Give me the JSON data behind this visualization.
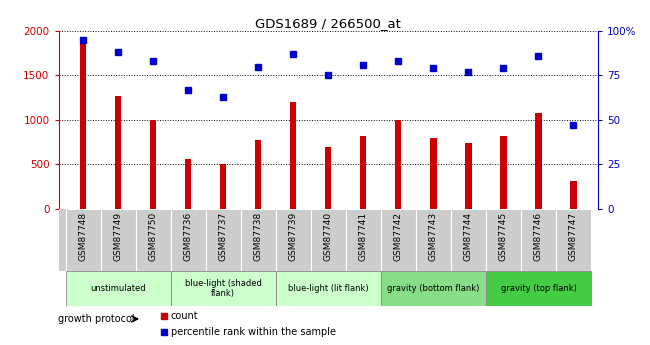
{
  "title": "GDS1689 / 266500_at",
  "samples": [
    "GSM87748",
    "GSM87749",
    "GSM87750",
    "GSM87736",
    "GSM87737",
    "GSM87738",
    "GSM87739",
    "GSM87740",
    "GSM87741",
    "GSM87742",
    "GSM87743",
    "GSM87744",
    "GSM87745",
    "GSM87746",
    "GSM87747"
  ],
  "counts": [
    1870,
    1270,
    1000,
    560,
    500,
    770,
    1200,
    690,
    820,
    1000,
    790,
    740,
    820,
    1080,
    310
  ],
  "percentiles": [
    95,
    88,
    83,
    67,
    63,
    80,
    87,
    75,
    81,
    83,
    79,
    77,
    79,
    86,
    47
  ],
  "bar_color": "#CC0000",
  "dot_color": "#0000CC",
  "ylim_left": [
    0,
    2000
  ],
  "ylim_right": [
    0,
    100
  ],
  "yticks_left": [
    0,
    500,
    1000,
    1500,
    2000
  ],
  "yticks_right": [
    0,
    25,
    50,
    75,
    100
  ],
  "yticklabels_right": [
    "0",
    "25",
    "50",
    "75",
    "100%"
  ],
  "groups": [
    {
      "label": "unstimulated",
      "indices": [
        0,
        1,
        2
      ],
      "color": "#CCFFCC"
    },
    {
      "label": "blue-light (shaded\nflank)",
      "indices": [
        3,
        4,
        5
      ],
      "color": "#CCFFCC"
    },
    {
      "label": "blue-light (lit flank)",
      "indices": [
        6,
        7,
        8
      ],
      "color": "#CCFFCC"
    },
    {
      "label": "gravity (bottom flank)",
      "indices": [
        9,
        10,
        11
      ],
      "color": "#88DD88"
    },
    {
      "label": "gravity (top flank)",
      "indices": [
        12,
        13,
        14
      ],
      "color": "#44CC44"
    }
  ],
  "growth_protocol_label": "growth protocol",
  "legend_count_label": "count",
  "legend_pct_label": "percentile rank within the sample",
  "xtick_bg_color": "#CCCCCC",
  "group_border_color": "#888888",
  "bar_width": 0.18
}
